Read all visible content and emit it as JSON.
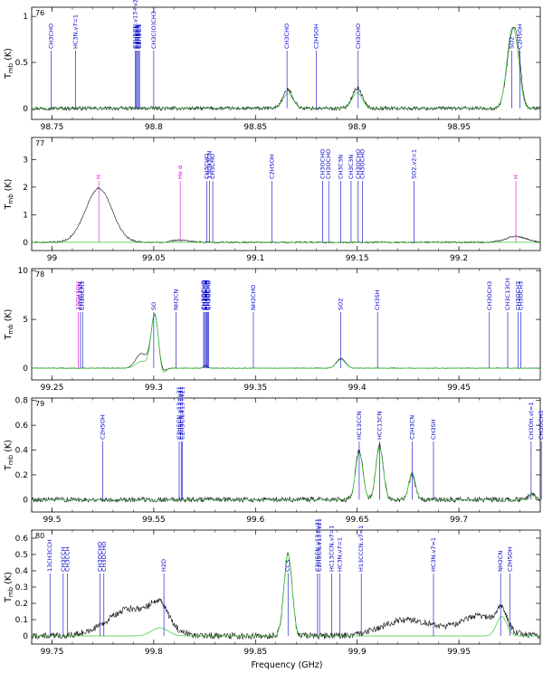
{
  "figure": {
    "xlabel": "Frequency (GHz)",
    "ylabel": "T",
    "ylabel_sub": "mb",
    "ylabel_unit": " (K)"
  },
  "chart_data": [
    {
      "type": "line",
      "panel_id": "76",
      "xlim": [
        98.74,
        98.99
      ],
      "ylim": [
        -0.12,
        1.1
      ],
      "xticks": [
        98.75,
        98.8,
        98.85,
        98.9,
        98.95
      ],
      "xtick_labels": [
        "98.75",
        "98.8",
        "98.85",
        "98.9",
        "98.95"
      ],
      "yticks": [
        0,
        0.5,
        1
      ],
      "ytick_labels": [
        "0",
        "0.5",
        "1"
      ],
      "peaks": [
        {
          "f": 98.866,
          "obs": 0.2,
          "model": 0.16,
          "w": 0.0025
        },
        {
          "f": 98.9,
          "obs": 0.22,
          "model": 0.17,
          "w": 0.0025
        },
        {
          "f": 98.976,
          "obs": 0.75,
          "model": 0.82,
          "w": 0.0025
        },
        {
          "f": 98.979,
          "obs": 0.35,
          "model": 0.2,
          "w": 0.0018
        }
      ],
      "noise": 0.02,
      "lines": [
        {
          "f": 98.7495,
          "label": "CH3CHO",
          "color": "blue"
        },
        {
          "f": 98.7615,
          "label": "HC3N,v7=1",
          "color": "blue"
        },
        {
          "f": 98.791,
          "label": "C2H5CN,v13+v21",
          "color": "blue"
        },
        {
          "f": 98.7915,
          "label": "C2H5CN",
          "color": "blue"
        },
        {
          "f": 98.792,
          "label": "C2H5CN",
          "color": "blue"
        },
        {
          "f": 98.7925,
          "label": "C2H5CN",
          "color": "blue"
        },
        {
          "f": 98.793,
          "label": "C2H5CN",
          "color": "blue"
        },
        {
          "f": 98.8,
          "label": "CH3C(O)CH3",
          "color": "blue"
        },
        {
          "f": 98.8655,
          "label": "CH3CHO",
          "color": "blue"
        },
        {
          "f": 98.88,
          "label": "C2H5OH",
          "color": "blue"
        },
        {
          "f": 98.9005,
          "label": "CH3CHO",
          "color": "blue"
        },
        {
          "f": 98.976,
          "label": "SO2",
          "color": "blue"
        },
        {
          "f": 98.98,
          "label": "C2H5OH",
          "color": "blue"
        }
      ]
    },
    {
      "type": "line",
      "panel_id": "77",
      "xlim": [
        98.99,
        99.24
      ],
      "ylim": [
        -0.3,
        3.8
      ],
      "xticks": [
        99,
        99.05,
        99.1,
        99.15,
        99.2
      ],
      "xtick_labels": [
        "99",
        "99.05",
        "99.1",
        "99.15",
        "99.2"
      ],
      "yticks": [
        0,
        1,
        2,
        3
      ],
      "ytick_labels": [
        "0",
        "1",
        "2",
        "3"
      ],
      "peaks": [
        {
          "f": 99.023,
          "obs": 1.95,
          "model": 0.0,
          "w": 0.0065
        },
        {
          "f": 99.063,
          "obs": 0.08,
          "model": 0.0,
          "w": 0.004
        },
        {
          "f": 99.228,
          "obs": 0.22,
          "model": 0.0,
          "w": 0.005
        }
      ],
      "noise": 0.03,
      "lines": [
        {
          "f": 99.023,
          "label": "H",
          "color": "magenta"
        },
        {
          "f": 99.063,
          "label": "He α",
          "color": "magenta"
        },
        {
          "f": 99.076,
          "label": "CH3CHO",
          "color": "blue"
        },
        {
          "f": 99.0775,
          "label": "13CH3CN",
          "color": "blue"
        },
        {
          "f": 99.079,
          "label": "CH3CHO",
          "color": "blue"
        },
        {
          "f": 99.108,
          "label": "C2H5OH",
          "color": "blue"
        },
        {
          "f": 99.133,
          "label": "CH3OCHO",
          "color": "blue"
        },
        {
          "f": 99.136,
          "label": "CH3OCHO",
          "color": "blue"
        },
        {
          "f": 99.142,
          "label": "CH3C3N",
          "color": "blue"
        },
        {
          "f": 99.147,
          "label": "CH3C3N",
          "color": "blue"
        },
        {
          "f": 99.1505,
          "label": "CH3OCHO",
          "color": "blue"
        },
        {
          "f": 99.1525,
          "label": "CH3OCHO",
          "color": "blue"
        },
        {
          "f": 99.178,
          "label": "SO2,v2=1",
          "color": "blue"
        },
        {
          "f": 99.228,
          "label": "H",
          "color": "magenta"
        }
      ]
    },
    {
      "type": "line",
      "panel_id": "78",
      "xlim": [
        99.24,
        99.49
      ],
      "ylim": [
        -1.2,
        10.2
      ],
      "xticks": [
        99.25,
        99.3,
        99.35,
        99.4,
        99.45
      ],
      "xtick_labels": [
        "99.25",
        "99.3",
        "99.35",
        "99.4",
        "99.45"
      ],
      "yticks": [
        0,
        5,
        10
      ],
      "ytick_labels": [
        "0",
        "5",
        "10"
      ],
      "peaks": [
        {
          "f": 99.294,
          "obs": 1.5,
          "model": 0.7,
          "w": 0.0028
        },
        {
          "f": 99.3005,
          "obs": 5.4,
          "model": 5.6,
          "w": 0.0018
        },
        {
          "f": 99.304,
          "obs": -0.5,
          "model": -0.8,
          "w": 0.0015
        },
        {
          "f": 99.3255,
          "obs": 0.3,
          "model": 0.2,
          "w": 0.001
        },
        {
          "f": 99.392,
          "obs": 1.0,
          "model": 0.9,
          "w": 0.0022
        }
      ],
      "noise": 0.04,
      "lines": [
        {
          "f": 99.263,
          "label": "13CH3OH",
          "color": "magenta"
        },
        {
          "f": 99.264,
          "label": "CH3C15N",
          "color": "blue"
        },
        {
          "f": 99.265,
          "label": "CH3OCH3",
          "color": "blue"
        },
        {
          "f": 99.3,
          "label": "SO",
          "color": "blue"
        },
        {
          "f": 99.311,
          "label": "NH2CN",
          "color": "blue"
        },
        {
          "f": 99.3245,
          "label": "CH3OCHO",
          "color": "blue"
        },
        {
          "f": 99.325,
          "label": "CH3OCHO",
          "color": "blue"
        },
        {
          "f": 99.3255,
          "label": "CH3OCHO",
          "color": "blue"
        },
        {
          "f": 99.326,
          "label": "CH3OCHO",
          "color": "blue"
        },
        {
          "f": 99.3265,
          "label": "CH3OCHO",
          "color": "blue"
        },
        {
          "f": 99.327,
          "label": "CH3OCHO",
          "color": "blue"
        },
        {
          "f": 99.349,
          "label": "NH2CHO",
          "color": "blue"
        },
        {
          "f": 99.392,
          "label": "SO2",
          "color": "blue"
        },
        {
          "f": 99.41,
          "label": "CH3SH",
          "color": "blue"
        },
        {
          "f": 99.465,
          "label": "CH3OCH3",
          "color": "blue"
        },
        {
          "f": 99.474,
          "label": "CH3C13CH",
          "color": "blue"
        },
        {
          "f": 99.479,
          "label": "CH3OCH3",
          "color": "blue"
        },
        {
          "f": 99.4805,
          "label": "CH3OCH3",
          "color": "blue"
        }
      ]
    },
    {
      "type": "line",
      "panel_id": "79",
      "xlim": [
        99.49,
        99.74
      ],
      "ylim": [
        -0.1,
        0.82
      ],
      "xticks": [
        99.5,
        99.55,
        99.6,
        99.65,
        99.7
      ],
      "xtick_labels": [
        "99.5",
        "99.55",
        "99.6",
        "99.65",
        "99.7"
      ],
      "yticks": [
        0,
        0.2,
        0.4,
        0.6,
        0.8
      ],
      "ytick_labels": [
        "0",
        "0.2",
        "0.4",
        "0.6",
        "0.8"
      ],
      "peaks": [
        {
          "f": 99.651,
          "obs": 0.4,
          "model": 0.38,
          "w": 0.0018
        },
        {
          "f": 99.661,
          "obs": 0.44,
          "model": 0.42,
          "w": 0.0018
        },
        {
          "f": 99.677,
          "obs": 0.2,
          "model": 0.22,
          "w": 0.0016
        },
        {
          "f": 99.736,
          "obs": 0.05,
          "model": 0.04,
          "w": 0.0015
        }
      ],
      "noise": 0.02,
      "lines": [
        {
          "f": 99.525,
          "label": "C2H5OH",
          "color": "blue"
        },
        {
          "f": 99.5625,
          "label": "C2H5CN,v13+v21",
          "color": "blue"
        },
        {
          "f": 99.5635,
          "label": "C2H5CN,v13+v21",
          "color": "blue"
        },
        {
          "f": 99.564,
          "label": "C2H5CN,v13+v21",
          "color": "blue"
        },
        {
          "f": 99.651,
          "label": "HC13CCN",
          "color": "blue"
        },
        {
          "f": 99.661,
          "label": "HCC13CN",
          "color": "blue"
        },
        {
          "f": 99.677,
          "label": "C2H3CN",
          "color": "blue"
        },
        {
          "f": 99.6875,
          "label": "CH3SH",
          "color": "blue"
        },
        {
          "f": 99.7355,
          "label": "CH3OH,vt=1",
          "color": "blue"
        },
        {
          "f": 99.7405,
          "label": "CH3OCH3",
          "color": "blue"
        }
      ]
    },
    {
      "type": "line",
      "panel_id": "80",
      "xlim": [
        99.74,
        99.99
      ],
      "ylim": [
        -0.05,
        0.65
      ],
      "xticks": [
        99.75,
        99.8,
        99.85,
        99.9,
        99.95
      ],
      "xtick_labels": [
        "99.75",
        "99.8",
        "99.85",
        "99.9",
        "99.95"
      ],
      "yticks": [
        0,
        0.1,
        0.2,
        0.3,
        0.4,
        0.5,
        0.6
      ],
      "ytick_labels": [
        "0",
        "0.1",
        "0.2",
        "0.3",
        "0.4",
        "0.5",
        "0.6"
      ],
      "peaks": [
        {
          "f": 99.803,
          "obs": 0.12,
          "model": 0.05,
          "w": 0.004
        },
        {
          "f": 99.866,
          "obs": 0.5,
          "model": 0.5,
          "w": 0.002
        },
        {
          "f": 99.971,
          "obs": 0.12,
          "model": 0.12,
          "w": 0.0025
        }
      ],
      "bumps": [
        {
          "f": 99.79,
          "obs": 0.17,
          "w": 0.012
        },
        {
          "f": 99.925,
          "obs": 0.1,
          "w": 0.012
        },
        {
          "f": 99.96,
          "obs": 0.12,
          "w": 0.01
        }
      ],
      "noise": 0.02,
      "lines": [
        {
          "f": 99.749,
          "label": "13CH3CCH",
          "color": "blue"
        },
        {
          "f": 99.7555,
          "label": "CH3CCH",
          "color": "blue"
        },
        {
          "f": 99.7575,
          "label": "CH3CCH",
          "color": "blue"
        },
        {
          "f": 99.7735,
          "label": "CH3OCHO",
          "color": "blue"
        },
        {
          "f": 99.7755,
          "label": "CH3OCHO",
          "color": "blue"
        },
        {
          "f": 99.805,
          "label": "H2D",
          "color": "blue"
        },
        {
          "f": 99.866,
          "label": "CCS",
          "color": "blue"
        },
        {
          "f": 99.8805,
          "label": "C2H5CN,v13+v21",
          "color": "blue"
        },
        {
          "f": 99.8815,
          "label": "C2H5CN,v13+v21",
          "color": "blue"
        },
        {
          "f": 99.8875,
          "label": "HC13CCN,v7=1",
          "color": "blue"
        },
        {
          "f": 99.8915,
          "label": "HC3N,v7=1",
          "color": "blue"
        },
        {
          "f": 99.902,
          "label": "H13CCCN,v7=1",
          "color": "blue"
        },
        {
          "f": 99.9375,
          "label": "HC3N,v7=1",
          "color": "blue"
        },
        {
          "f": 99.9705,
          "label": "NH2CN",
          "color": "blue"
        },
        {
          "f": 99.975,
          "label": "C2H5OH",
          "color": "blue"
        }
      ]
    }
  ]
}
